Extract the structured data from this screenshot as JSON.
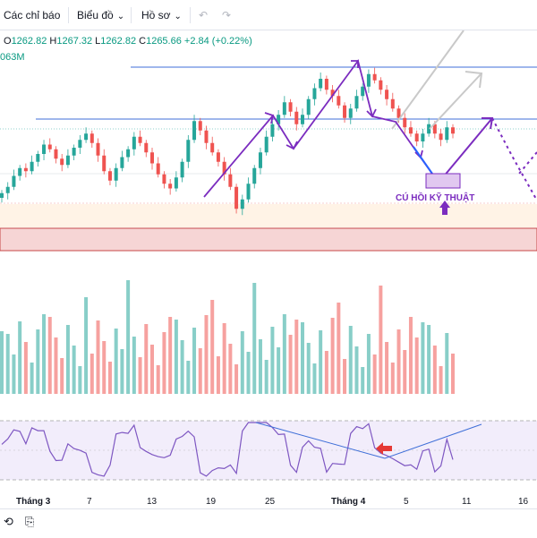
{
  "toolbar": {
    "indicators_label": "Các chỉ báo",
    "charts_label": "Biểu đồ",
    "profile_label": "Hồ sơ"
  },
  "ohlc": {
    "open_key": "O",
    "open": "1262.82",
    "high_key": "H",
    "high": "1267.32",
    "low_key": "L",
    "low": "1262.82",
    "close_key": "C",
    "close": "1265.66",
    "change": "+2.84 (+0.22%)"
  },
  "volume_label": "063M",
  "annotation_text": "CÚ HỒI KỸ THUẬT",
  "colors": {
    "up": "#26a69a",
    "down": "#ef5350",
    "trend_arrow": "#7b2cbf",
    "blue_arrow": "#2962ff",
    "resistance": "#3f6fd8",
    "rsi_line": "#7e57c2"
  },
  "x_axis_labels": [
    "Tháng 3",
    "7",
    "13",
    "19",
    "25",
    "Tháng 4",
    "5",
    "11",
    "16"
  ],
  "chart_data": {
    "type": "candlestick",
    "title": "",
    "seed_close": [
      1224,
      1228,
      1235,
      1240,
      1238,
      1244,
      1249,
      1255,
      1252,
      1246,
      1242,
      1248,
      1253,
      1258,
      1262,
      1256,
      1248,
      1238,
      1232,
      1240,
      1247,
      1252,
      1260,
      1256,
      1250,
      1243,
      1236,
      1230,
      1227,
      1234,
      1244,
      1258,
      1270,
      1264,
      1256,
      1250,
      1244,
      1236,
      1228,
      1214,
      1220,
      1230,
      1240,
      1250,
      1260,
      1268,
      1274,
      1282,
      1276,
      1268,
      1274,
      1284,
      1291,
      1297,
      1290,
      1286,
      1280,
      1272,
      1278,
      1286,
      1292,
      1300,
      1296,
      1290,
      1284,
      1278,
      1272,
      1266,
      1262,
      1257,
      1262,
      1268,
      1262,
      1258,
      1266,
      1262
    ]
  }
}
